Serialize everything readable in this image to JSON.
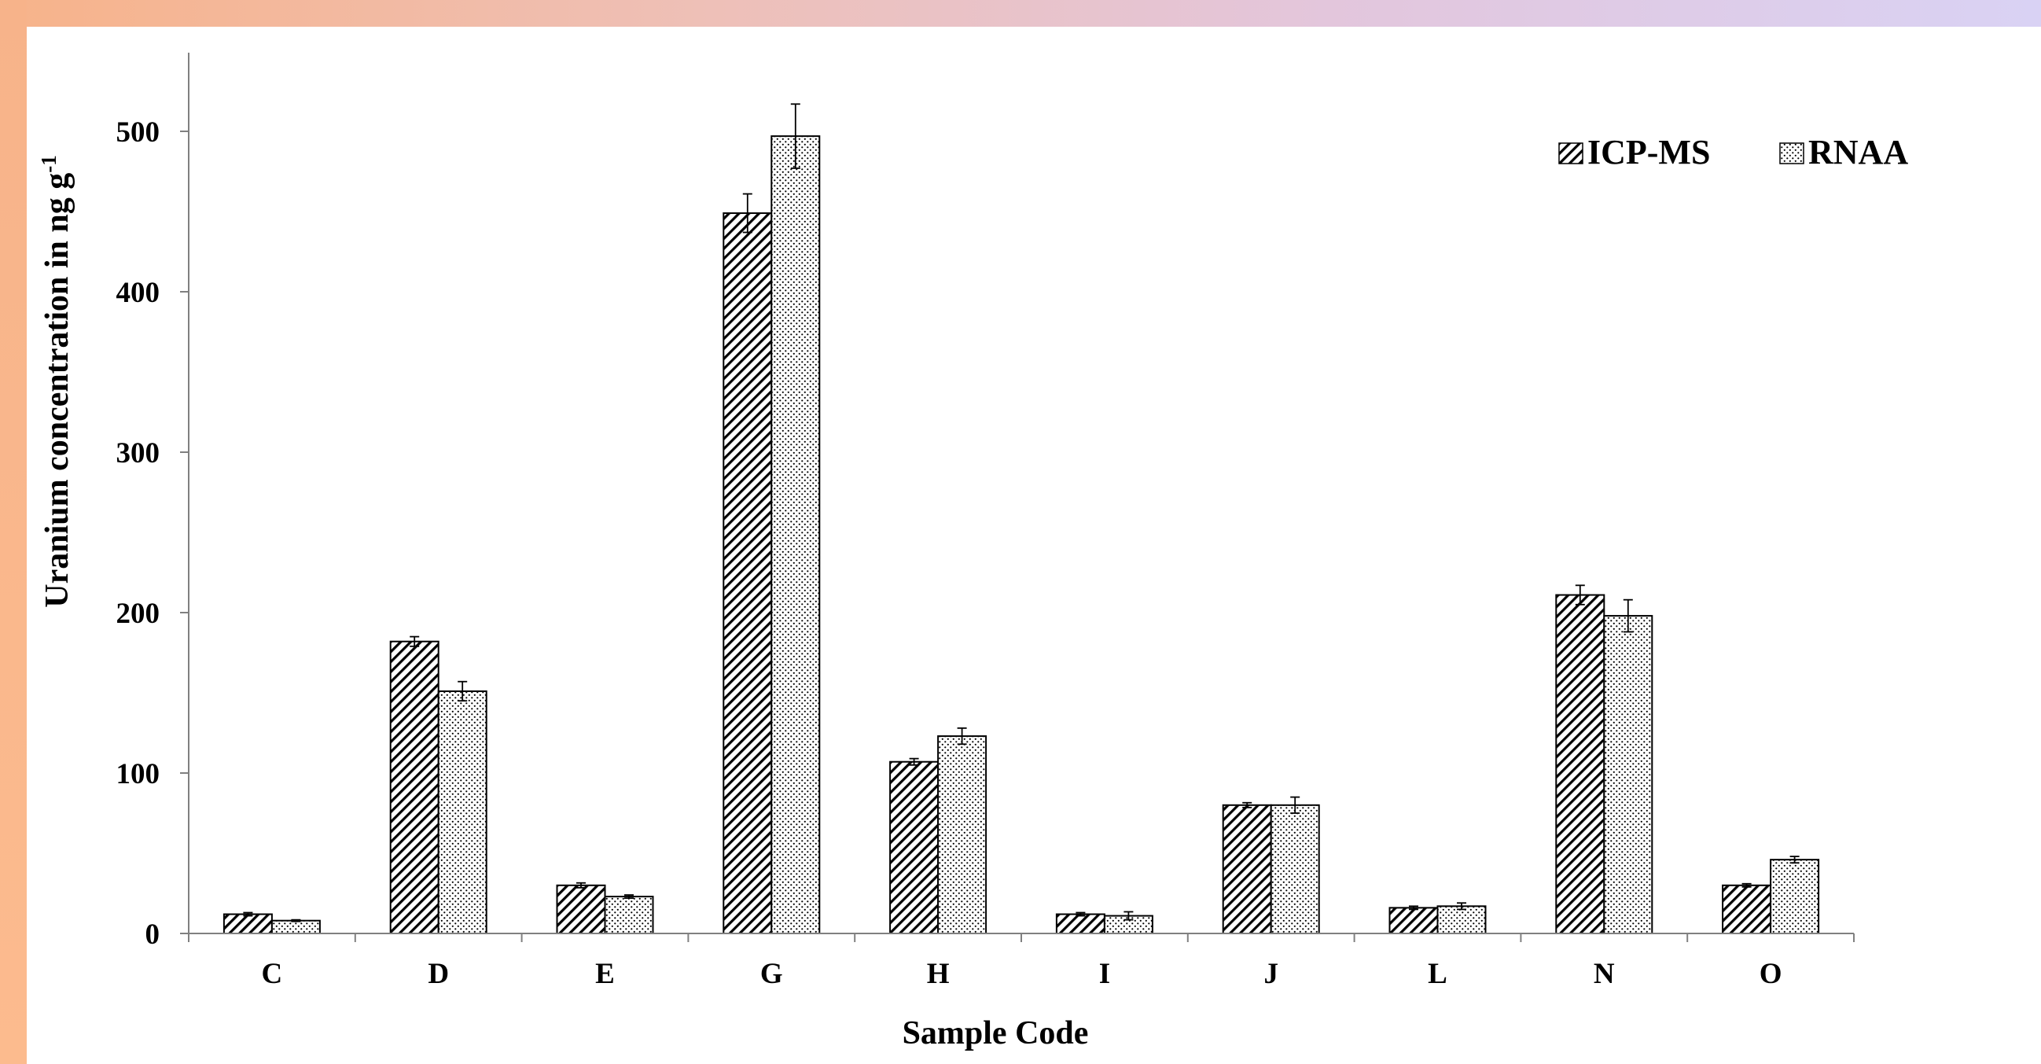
{
  "chart_data": {
    "type": "bar",
    "title": "",
    "xlabel": "Sample Code",
    "ylabel_main": "Uranium concentration in ng g",
    "ylabel_sup": "-1",
    "categories": [
      "C",
      "D",
      "E",
      "G",
      "H",
      "I",
      "J",
      "L",
      "N",
      "O"
    ],
    "series": [
      {
        "name": "ICP-MS",
        "pattern": "diagonal-hatch",
        "values": [
          12,
          182,
          30,
          449,
          107,
          12,
          80,
          16,
          211,
          30
        ],
        "errors": [
          1,
          3,
          1.5,
          12,
          2,
          1,
          1.5,
          1,
          6,
          1
        ]
      },
      {
        "name": "RNAA",
        "pattern": "dots",
        "values": [
          8,
          151,
          23,
          497,
          123,
          11,
          80,
          17,
          198,
          46
        ],
        "errors": [
          0.5,
          6,
          1,
          20,
          5,
          2.5,
          5,
          2,
          10,
          2
        ]
      }
    ],
    "ylim": [
      0,
      550
    ],
    "yticks": [
      "0",
      "100",
      "200",
      "300",
      "400",
      "500"
    ],
    "grid": false,
    "legend_position": "top-right",
    "colors": {
      "bar_fill": "#ffffff",
      "ink": "#000000",
      "axis": "#808080",
      "band_left": "#f7b38a",
      "band_right": "#d9d2f4"
    }
  }
}
